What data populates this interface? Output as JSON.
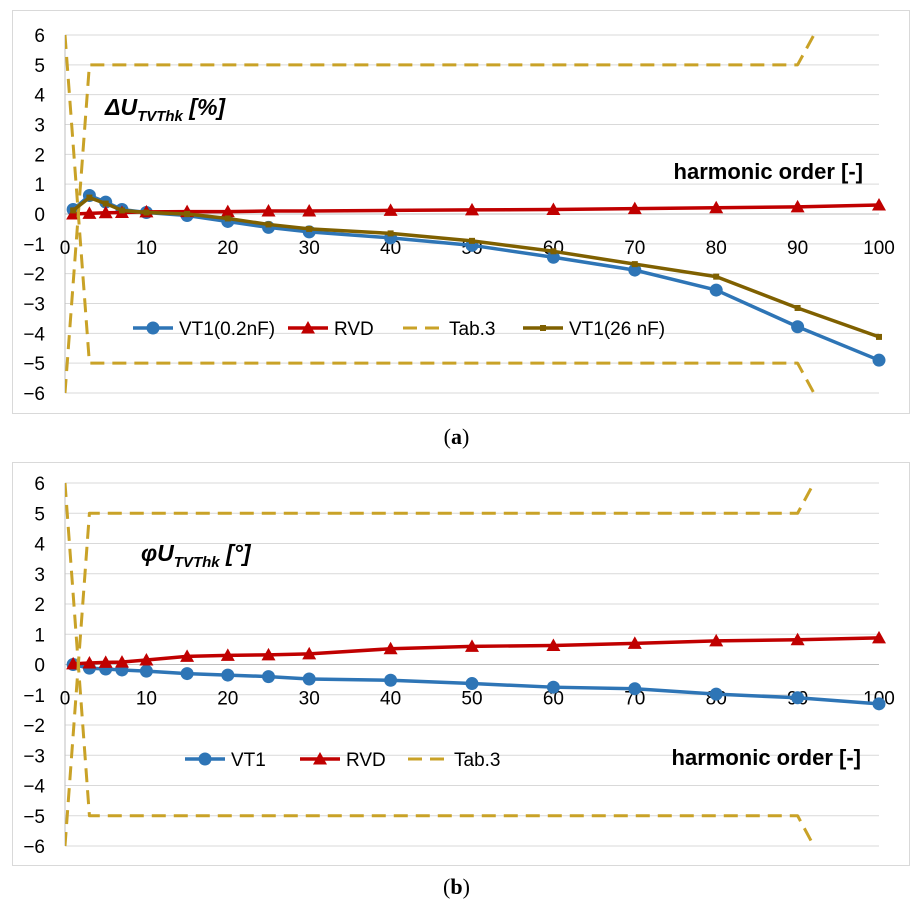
{
  "chart_data": [
    {
      "type": "line",
      "panel_label": "a",
      "annotation_symbol": "ΔU",
      "annotation_subscript": "TVThk",
      "annotation_unit": " [%]",
      "xlabel": "harmonic order [-]",
      "xlim": [
        0,
        100
      ],
      "ylim": [
        -6,
        6
      ],
      "xticks": [
        0,
        10,
        20,
        30,
        40,
        50,
        60,
        70,
        80,
        90,
        100
      ],
      "yticks": [
        -6,
        -5,
        -4,
        -3,
        -2,
        -1,
        0,
        1,
        2,
        3,
        4,
        5,
        6
      ],
      "grid": "horizontal",
      "legend_position": "bottom-center",
      "series": [
        {
          "name": "VT1(0.2nF)",
          "color": "#2e75b6",
          "marker": "circle",
          "dash": "solid",
          "x": [
            1,
            3,
            5,
            7,
            10,
            15,
            20,
            25,
            30,
            40,
            50,
            60,
            70,
            80,
            90,
            100
          ],
          "y": [
            0.15,
            0.62,
            0.4,
            0.15,
            0.05,
            -0.05,
            -0.25,
            -0.45,
            -0.6,
            -0.8,
            -1.05,
            -1.45,
            -1.88,
            -2.55,
            -3.78,
            -4.9
          ]
        },
        {
          "name": "RVD",
          "color": "#c00000",
          "marker": "triangle",
          "dash": "solid",
          "x": [
            1,
            3,
            5,
            7,
            10,
            15,
            20,
            25,
            30,
            40,
            50,
            60,
            70,
            80,
            90,
            100
          ],
          "y": [
            0.0,
            0.02,
            0.04,
            0.05,
            0.07,
            0.08,
            0.08,
            0.1,
            0.1,
            0.12,
            0.14,
            0.15,
            0.18,
            0.21,
            0.24,
            0.3
          ]
        },
        {
          "name": "Tab.3",
          "color": "#c9a227",
          "marker": "none",
          "dash": "dashed",
          "x": [
            0,
            3,
            90,
            92
          ],
          "y": [
            -6,
            5,
            5,
            6
          ]
        },
        {
          "name": "",
          "color": "#c9a227",
          "marker": "none",
          "dash": "dashed",
          "x": [
            0,
            3,
            90,
            92
          ],
          "y": [
            6,
            -5,
            -5,
            -6
          ]
        },
        {
          "name": "VT1(26 nF)",
          "color": "#7f6000",
          "marker": "square",
          "dash": "solid",
          "x": [
            1,
            3,
            5,
            7,
            10,
            15,
            20,
            25,
            30,
            40,
            50,
            60,
            70,
            80,
            90,
            100
          ],
          "y": [
            0.12,
            0.55,
            0.35,
            0.12,
            0.05,
            0.0,
            -0.15,
            -0.35,
            -0.5,
            -0.65,
            -0.9,
            -1.25,
            -1.68,
            -2.1,
            -3.15,
            -4.12
          ]
        }
      ]
    },
    {
      "type": "line",
      "panel_label": "b",
      "annotation_symbol": "φU",
      "annotation_subscript": "TVThk",
      "annotation_unit": " [°]",
      "xlabel": "harmonic order [-]",
      "xlim": [
        0,
        100
      ],
      "ylim": [
        -6,
        6
      ],
      "xticks": [
        0,
        10,
        20,
        30,
        40,
        50,
        60,
        70,
        80,
        90,
        100
      ],
      "yticks": [
        -6,
        -5,
        -4,
        -3,
        -2,
        -1,
        0,
        1,
        2,
        3,
        4,
        5,
        6
      ],
      "grid": "horizontal",
      "legend_position": "bottom-left",
      "series": [
        {
          "name": "VT1",
          "color": "#2e75b6",
          "marker": "circle",
          "dash": "solid",
          "x": [
            1,
            3,
            5,
            7,
            10,
            15,
            20,
            25,
            30,
            40,
            50,
            60,
            70,
            80,
            90,
            100
          ],
          "y": [
            0.0,
            -0.12,
            -0.15,
            -0.18,
            -0.22,
            -0.3,
            -0.35,
            -0.4,
            -0.48,
            -0.52,
            -0.63,
            -0.75,
            -0.8,
            -0.98,
            -1.1,
            -1.3
          ]
        },
        {
          "name": "RVD",
          "color": "#c00000",
          "marker": "triangle",
          "dash": "solid",
          "x": [
            1,
            3,
            5,
            7,
            10,
            15,
            20,
            25,
            30,
            40,
            50,
            60,
            70,
            80,
            90,
            100
          ],
          "y": [
            0.02,
            0.05,
            0.07,
            0.08,
            0.15,
            0.27,
            0.3,
            0.32,
            0.35,
            0.52,
            0.6,
            0.63,
            0.7,
            0.78,
            0.82,
            0.88
          ]
        },
        {
          "name": "Tab.3",
          "color": "#c9a227",
          "marker": "none",
          "dash": "dashed",
          "x": [
            0,
            3,
            90,
            92
          ],
          "y": [
            -6,
            5,
            5,
            6
          ]
        },
        {
          "name": "",
          "color": "#c9a227",
          "marker": "none",
          "dash": "dashed",
          "x": [
            0,
            3,
            90,
            92
          ],
          "y": [
            6,
            -5,
            -5,
            -6
          ]
        }
      ]
    }
  ]
}
